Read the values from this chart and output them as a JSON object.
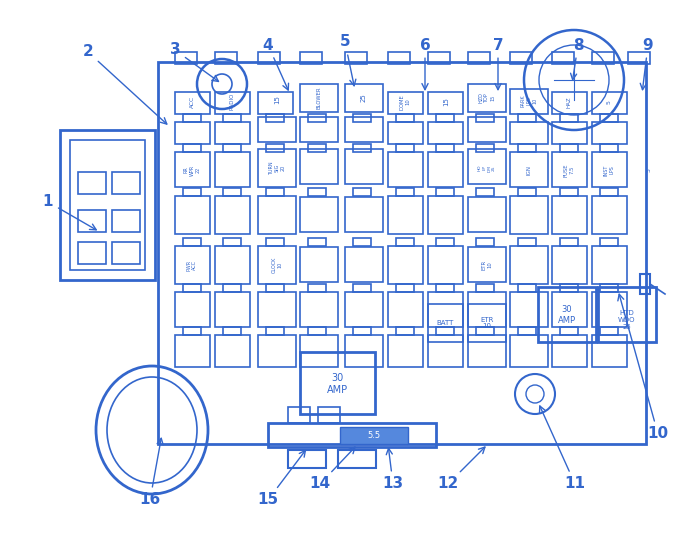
{
  "bg_color": "#ffffff",
  "line_color": "#3366cc",
  "fig_width": 6.9,
  "fig_height": 5.42,
  "dpi": 100,
  "callout_data": [
    [
      1,
      48,
      340,
      100,
      310
    ],
    [
      2,
      88,
      490,
      170,
      415
    ],
    [
      3,
      175,
      492,
      222,
      458
    ],
    [
      4,
      268,
      497,
      290,
      448
    ],
    [
      5,
      345,
      500,
      355,
      452
    ],
    [
      6,
      425,
      497,
      425,
      448
    ],
    [
      7,
      498,
      497,
      498,
      448
    ],
    [
      8,
      578,
      497,
      572,
      458
    ],
    [
      9,
      648,
      497,
      642,
      448
    ],
    [
      10,
      658,
      108,
      618,
      252
    ],
    [
      11,
      575,
      58,
      538,
      140
    ],
    [
      12,
      448,
      58,
      488,
      98
    ],
    [
      13,
      393,
      58,
      388,
      98
    ],
    [
      14,
      320,
      58,
      358,
      98
    ],
    [
      15,
      268,
      42,
      308,
      95
    ],
    [
      16,
      150,
      42,
      162,
      108
    ]
  ]
}
